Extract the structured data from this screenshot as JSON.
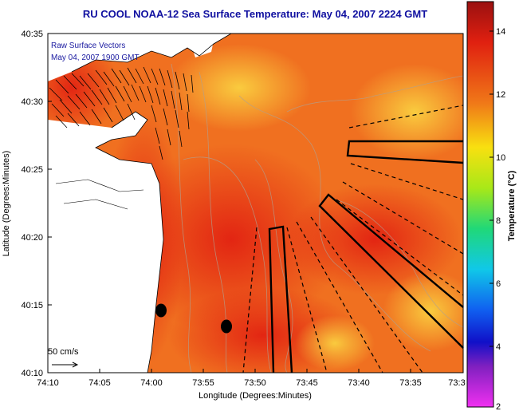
{
  "title": "RU COOL  NOAA-12  Sea Surface Temperature:  May 04, 2007 2224 GMT",
  "overlay": {
    "line1": "Raw Surface Vectors",
    "line2": "May 04, 2007 1900 GMT"
  },
  "axes": {
    "xlabel": "Longitude (Degrees:Minutes)",
    "ylabel": "Latitude (Degrees:Minutes)",
    "xticks": [
      "74:10",
      "74:05",
      "74:00",
      "73:55",
      "73:50",
      "73:45",
      "73:40",
      "73:35",
      "73:3"
    ],
    "yticks": [
      "40:35",
      "40:30",
      "40:25",
      "40:20",
      "40:15",
      "40:10"
    ]
  },
  "scale": {
    "label": "50 cm/s"
  },
  "colorbar": {
    "label": "Temperature (°C)",
    "ticks": [
      "14",
      "12",
      "10",
      "8",
      "6",
      "4",
      "2"
    ]
  },
  "colors": {
    "title": "#1010a0",
    "sst_warm": "#f07020",
    "sst_hot": "#e83018",
    "sst_cool": "#f8b030"
  }
}
